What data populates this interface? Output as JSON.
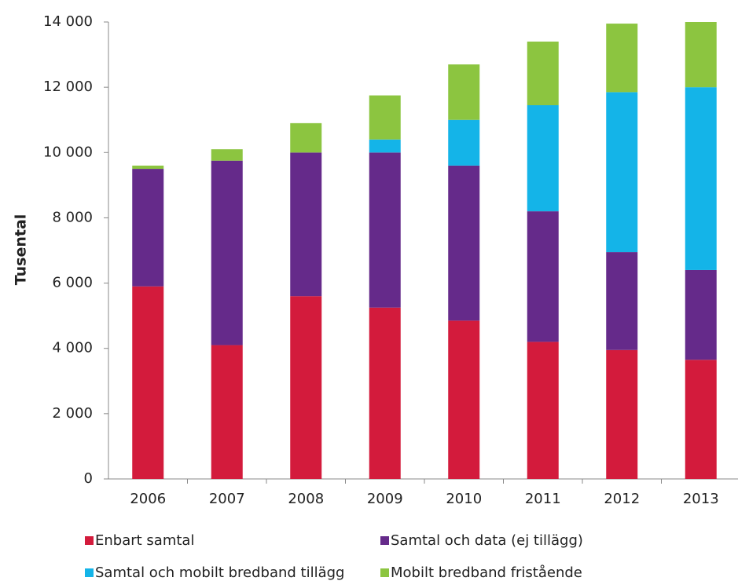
{
  "chart_data": {
    "type": "stacked_bar",
    "y_label": "Tusental",
    "categories": [
      "2006",
      "2007",
      "2008",
      "2009",
      "2010",
      "2011",
      "2012",
      "2013"
    ],
    "series": [
      {
        "name": "Enbart samtal",
        "color": "#d31b3c",
        "values": [
          5900,
          4100,
          5600,
          5250,
          4850,
          4200,
          3950,
          3650
        ]
      },
      {
        "name": "Samtal och data (ej tillägg)",
        "color": "#652a8a",
        "values": [
          3600,
          5650,
          4400,
          4750,
          4750,
          4000,
          3000,
          2750
        ]
      },
      {
        "name": "Samtal och mobilt bredband tillägg",
        "color": "#14b4e8",
        "values": [
          0,
          0,
          0,
          400,
          1400,
          3250,
          4900,
          5600
        ]
      },
      {
        "name": "Mobilt bredband fristående",
        "color": "#8cc540",
        "values": [
          100,
          350,
          900,
          1350,
          1700,
          1950,
          2100,
          2000
        ]
      }
    ],
    "ylim": [
      0,
      14000
    ],
    "yticks": [
      0,
      {
        "value": 2000,
        "label": "2 000"
      },
      {
        "value": 4000,
        "label": "4 000"
      },
      {
        "value": 6000,
        "label": "6 000"
      },
      {
        "value": 8000,
        "label": "8 000"
      },
      {
        "value": 10000,
        "label": "10 000"
      },
      {
        "value": 12000,
        "label": "12 000"
      },
      {
        "value": 14000,
        "label": "14 000"
      }
    ],
    "grid": false
  }
}
